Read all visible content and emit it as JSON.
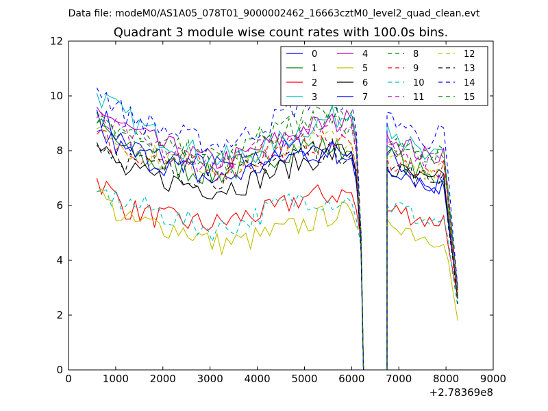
{
  "header": {
    "file_label": "Data file: modeM0/AS1A05_078T01_9000002462_16663cztM0_level2_quad_clean.evt"
  },
  "chart_data": {
    "type": "line",
    "title": "Quadrant 3 module wise count rates with 100.0s bins.",
    "xlabel": "",
    "ylabel": "",
    "x_offset_label": "+2.78369e8",
    "xlim": [
      0,
      9000
    ],
    "ylim": [
      0,
      12
    ],
    "xticks": [
      0,
      1000,
      2000,
      3000,
      4000,
      5000,
      6000,
      7000,
      8000,
      9000
    ],
    "yticks": [
      0,
      2,
      4,
      6,
      8,
      10,
      12
    ],
    "xtick_labels": [
      "0",
      "1000",
      "2000",
      "3000",
      "4000",
      "5000",
      "6000",
      "7000",
      "8000",
      "9000"
    ],
    "ytick_labels": [
      "0",
      "2",
      "4",
      "6",
      "8",
      "10",
      "12"
    ],
    "grid": false,
    "legend_position": "top-right",
    "legend_columns": 4,
    "gap_x": [
      6250,
      6750
    ],
    "segment1_x": [
      600,
      6200
    ],
    "segment2_x": [
      6750,
      8250
    ],
    "series": [
      {
        "name": "0",
        "color": "#0000ff",
        "dash": "solid",
        "seg1": [
          9.5,
          8.2,
          7.8,
          7.6,
          7.4,
          7.5,
          7.9,
          8.2,
          8.0,
          7.6
        ],
        "seg2": [
          7.9,
          7.5,
          7.2,
          6.5,
          6.7,
          3.0
        ]
      },
      {
        "name": "1",
        "color": "#008000",
        "dash": "solid",
        "seg1": [
          9.0,
          8.0,
          7.5,
          7.3,
          7.1,
          7.4,
          7.8,
          8.2,
          8.1,
          7.9
        ],
        "seg2": [
          7.8,
          7.6,
          7.3,
          7.0,
          7.1,
          2.8
        ]
      },
      {
        "name": "2",
        "color": "#ff0000",
        "dash": "solid",
        "seg1": [
          7.0,
          5.9,
          5.6,
          5.4,
          5.3,
          5.6,
          5.8,
          6.3,
          6.4,
          6.5
        ],
        "seg2": [
          5.8,
          5.8,
          5.6,
          5.4,
          5.5,
          2.6
        ]
      },
      {
        "name": "3",
        "color": "#00bfbf",
        "dash": "solid",
        "seg1": [
          10.1,
          9.2,
          8.6,
          8.1,
          7.7,
          7.8,
          8.2,
          8.8,
          9.2,
          9.4
        ],
        "seg2": [
          9.0,
          8.5,
          8.0,
          7.6,
          7.9,
          3.0
        ]
      },
      {
        "name": "4",
        "color": "#bf00bf",
        "dash": "solid",
        "seg1": [
          9.6,
          8.8,
          8.3,
          7.9,
          7.6,
          7.8,
          8.3,
          8.8,
          9.0,
          9.2
        ],
        "seg2": [
          8.6,
          8.3,
          8.0,
          7.7,
          8.0,
          2.9
        ]
      },
      {
        "name": "5",
        "color": "#bfbf00",
        "dash": "solid",
        "seg1": [
          6.5,
          5.4,
          5.3,
          5.1,
          4.6,
          4.7,
          5.0,
          5.3,
          5.7,
          5.8
        ],
        "seg2": [
          5.5,
          5.3,
          5.0,
          4.8,
          4.9,
          1.8
        ]
      },
      {
        "name": "6",
        "color": "#000000",
        "dash": "solid",
        "seg1": [
          8.2,
          7.2,
          7.0,
          6.8,
          6.6,
          6.8,
          7.2,
          7.6,
          7.9,
          8.0
        ],
        "seg2": [
          7.3,
          7.2,
          7.0,
          6.8,
          7.0,
          2.6
        ]
      },
      {
        "name": "7",
        "color": "#0000ff",
        "dash": "solid",
        "seg1": [
          8.7,
          7.9,
          7.6,
          7.3,
          6.9,
          7.2,
          7.6,
          7.9,
          8.0,
          7.9
        ],
        "seg2": [
          7.4,
          7.3,
          7.0,
          6.7,
          6.9,
          2.7
        ]
      },
      {
        "name": "8",
        "color": "#008000",
        "dash": "dashed",
        "seg1": [
          9.4,
          8.6,
          8.2,
          8.0,
          7.7,
          8.1,
          8.8,
          9.3,
          9.5,
          9.4
        ],
        "seg2": [
          8.2,
          8.0,
          7.9,
          7.8,
          8.1,
          2.8
        ]
      },
      {
        "name": "9",
        "color": "#ff0000",
        "dash": "dashed",
        "seg1": [
          8.6,
          8.0,
          7.7,
          7.5,
          7.3,
          7.5,
          7.9,
          8.2,
          8.3,
          8.2
        ],
        "seg2": [
          7.7,
          7.5,
          7.3,
          7.1,
          7.3,
          2.6
        ]
      },
      {
        "name": "10",
        "color": "#00bfbf",
        "dash": "dashed",
        "seg1": [
          6.5,
          6.1,
          5.8,
          5.4,
          5.1,
          5.4,
          5.9,
          6.3,
          6.2,
          6.1
        ],
        "seg2": [
          6.0,
          5.9,
          5.6,
          5.4,
          5.5,
          2.3
        ]
      },
      {
        "name": "11",
        "color": "#bf00bf",
        "dash": "dashed",
        "seg1": [
          9.2,
          8.5,
          8.1,
          7.8,
          7.5,
          7.7,
          8.3,
          8.9,
          9.0,
          8.8
        ],
        "seg2": [
          8.3,
          8.1,
          7.8,
          7.5,
          7.8,
          2.7
        ]
      },
      {
        "name": "12",
        "color": "#bfbf00",
        "dash": "dashed",
        "seg1": [
          8.8,
          8.2,
          7.8,
          7.6,
          7.4,
          7.6,
          8.0,
          8.4,
          8.4,
          8.2
        ],
        "seg2": [
          7.7,
          7.6,
          7.4,
          7.3,
          7.6,
          2.8
        ]
      },
      {
        "name": "13",
        "color": "#000000",
        "dash": "dashed",
        "seg1": [
          8.3,
          7.7,
          7.4,
          7.2,
          7.0,
          7.2,
          7.7,
          8.0,
          8.0,
          7.8
        ],
        "seg2": [
          7.4,
          7.3,
          7.1,
          6.9,
          7.1,
          2.4
        ]
      },
      {
        "name": "14",
        "color": "#0000ff",
        "dash": "dashed",
        "seg1": [
          10.3,
          9.3,
          8.9,
          8.5,
          8.2,
          8.5,
          9.1,
          9.8,
          9.9,
          9.7
        ],
        "seg2": [
          9.4,
          9.0,
          8.6,
          8.4,
          8.7,
          3.0
        ]
      },
      {
        "name": "15",
        "color": "#008000",
        "dash": "dashed",
        "seg1": [
          9.0,
          8.4,
          8.0,
          7.8,
          7.6,
          7.9,
          8.5,
          9.0,
          9.1,
          8.9
        ],
        "seg2": [
          8.2,
          8.0,
          7.8,
          7.7,
          8.4,
          2.6
        ]
      }
    ]
  }
}
